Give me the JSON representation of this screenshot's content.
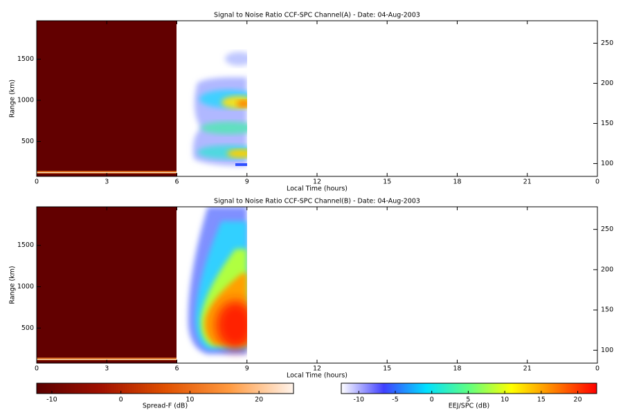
{
  "chart_data": [
    {
      "type": "heatmap",
      "title": "Signal to Noise Ratio CCF-SPC Channel(A) - Date: 04-Aug-2003",
      "x_label": "Local Time (hours)",
      "y_label": "Range (km)",
      "xlim": [
        0,
        24
      ],
      "xticks": [
        0,
        3,
        6,
        9,
        12,
        15,
        18,
        21,
        {
          "value": 24,
          "label": "0"
        }
      ],
      "ylim": [
        76,
        1966
      ],
      "yticks": [
        500,
        1000,
        1500
      ],
      "y2lim": [
        84,
        278
      ],
      "y2ticks": [
        100,
        150,
        200,
        250
      ]
    },
    {
      "type": "heatmap",
      "title": "Signal to Noise Ratio CCF-SPC Channel(B) - Date: 04-Aug-2003",
      "x_label": "Local Time (hours)",
      "y_label": "Range (km)",
      "xlim": [
        0,
        24
      ],
      "xticks": [
        0,
        3,
        6,
        9,
        12,
        15,
        18,
        21,
        {
          "value": 24,
          "label": "0"
        }
      ],
      "ylim": [
        76,
        1966
      ],
      "yticks": [
        500,
        1000,
        1500
      ],
      "y2lim": [
        84,
        278
      ],
      "y2ticks": [
        100,
        150,
        200,
        250
      ]
    },
    {
      "type": "colorbar",
      "x_label": "Spread-F (dB)",
      "xlim": [
        -12.2,
        25
      ],
      "xticks": [
        -10,
        0,
        10,
        20
      ],
      "colors": [
        "#5a0000",
        "#a01000",
        "#e05000",
        "#ff9a40",
        "#fff4ec"
      ]
    },
    {
      "type": "colorbar",
      "x_label": "EEJ/SPC (dB)",
      "xlim": [
        -12.4,
        22.6
      ],
      "xticks": [
        -10,
        -5,
        0,
        5,
        10,
        15,
        20
      ],
      "colors": [
        "#ffffff",
        "#4040ff",
        "#00e0ff",
        "#60ff80",
        "#ffff00",
        "#ff8000",
        "#ff0000"
      ]
    }
  ]
}
